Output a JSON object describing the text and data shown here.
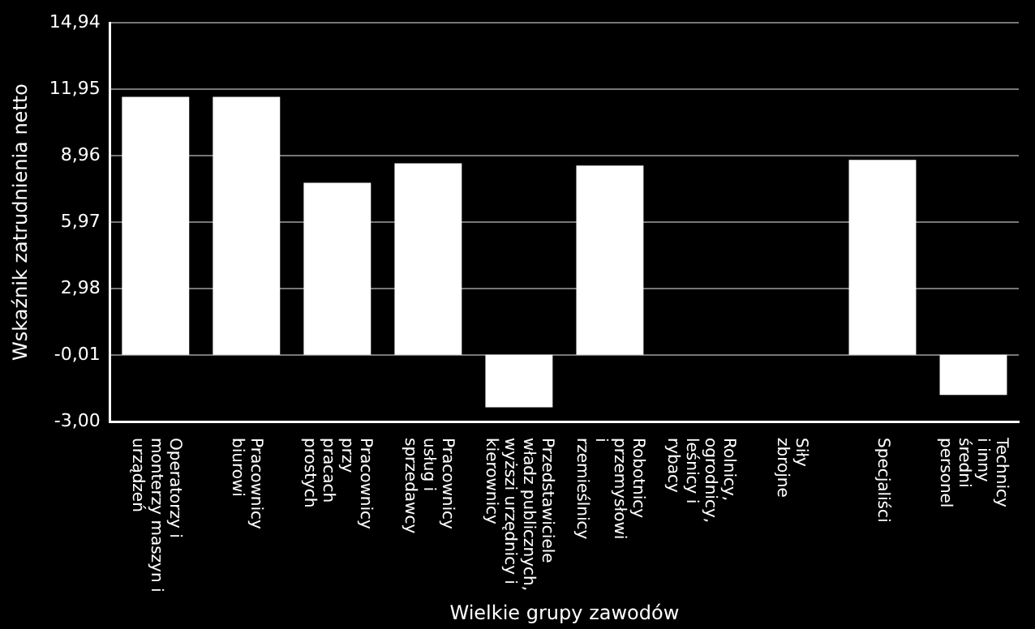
{
  "chart_data": {
    "type": "bar",
    "xlabel": "Wielkie grupy zawodów",
    "ylabel": "Wskaźnik zatrudnienia netto",
    "categories": [
      "Operatorzy i\nmonterzy maszyn i\nurządzeń",
      "Pracownicy\nbiurowi",
      "Pracownicy\nprzy\npracach\nprostych",
      "Pracownicy\nusług i\nsprzedawcy",
      "Przedstawiciele\nwładz publicznych,\nwyższi urzędnicy i\nkierownicy",
      "Robotnicy\nprzemysłowi\ni\nrzemieślnicy",
      "Rolnicy,\nogrodnicy,\nleśnicy i\nrybacy",
      "Siły\nzbrojne",
      "Specjaliści",
      "Technicy\ni inny\nśredni\npersonel"
    ],
    "values": [
      11.6,
      11.6,
      7.74,
      8.61,
      -2.36,
      8.51,
      0,
      0,
      8.77,
      -1.81
    ],
    "color": "#ffffff",
    "ylim": [
      -3.0,
      14.94
    ],
    "yticks": [
      {
        "value": -3.0,
        "label": "-3,00"
      },
      {
        "value": -0.01,
        "label": "-0,01"
      },
      {
        "value": 2.98,
        "label": "2,98"
      },
      {
        "value": 5.97,
        "label": "5,97"
      },
      {
        "value": 8.96,
        "label": "8,96"
      },
      {
        "value": 11.95,
        "label": "11,95"
      },
      {
        "value": 14.94,
        "label": "14,94"
      }
    ],
    "grid": "y",
    "legend": false
  }
}
